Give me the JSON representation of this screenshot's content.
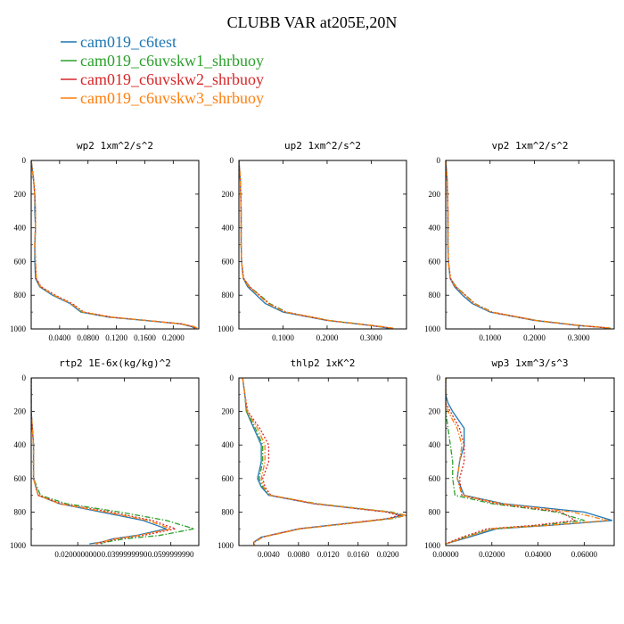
{
  "figure": {
    "title": "CLUBB VAR at205E,20N",
    "legend": [
      {
        "name": "cam019_c6test",
        "color": "#1f77b4",
        "dash": "solid"
      },
      {
        "name": "cam019_c6uvskw1_shrbuoy",
        "color": "#2ca02c",
        "dash": "dashdot"
      },
      {
        "name": "cam019_c6uvskw2_shrbuoy",
        "color": "#d62728",
        "dash": "dot"
      },
      {
        "name": "cam019_c6uvskw3_shrbuoy",
        "color": "#ff7f0e",
        "dash": "dashdot"
      }
    ]
  },
  "chart_data": [
    {
      "type": "line",
      "title": "wp2  1xm^2/s^2",
      "xlim": [
        0,
        0.236
      ],
      "ylim": [
        0,
        1000
      ],
      "y_inverted": true,
      "xticks": [
        0.04,
        0.08,
        0.12,
        0.16,
        0.2
      ],
      "xtick_labels": [
        "0.0400",
        "0.0800",
        "0.1200",
        "0.1600",
        "0.2000"
      ],
      "yticks": [
        0,
        200,
        400,
        600,
        800,
        1000
      ],
      "ytick_labels": [
        "0",
        "200",
        "400",
        "600",
        "800",
        "1000"
      ],
      "y": [
        0,
        100,
        150,
        200,
        300,
        400,
        500,
        600,
        700,
        750,
        800,
        850,
        900,
        930,
        950,
        970,
        985,
        995
      ],
      "series": [
        {
          "name": "cam019_c6test",
          "values": [
            0.0,
            0.003,
            0.004,
            0.005,
            0.005,
            0.006,
            0.005,
            0.005,
            0.006,
            0.012,
            0.03,
            0.055,
            0.07,
            0.11,
            0.16,
            0.21,
            0.225,
            0.23
          ]
        },
        {
          "name": "cam019_c6uvskw1_shrbuoy",
          "values": [
            0.0,
            0.003,
            0.004,
            0.005,
            0.006,
            0.006,
            0.005,
            0.006,
            0.007,
            0.013,
            0.032,
            0.057,
            0.072,
            0.112,
            0.162,
            0.212,
            0.228,
            0.233
          ]
        },
        {
          "name": "cam019_c6uvskw2_shrbuoy",
          "values": [
            0.0,
            0.003,
            0.004,
            0.005,
            0.006,
            0.006,
            0.005,
            0.006,
            0.007,
            0.014,
            0.034,
            0.058,
            0.074,
            0.114,
            0.163,
            0.212,
            0.226,
            0.231
          ]
        },
        {
          "name": "cam019_c6uvskw3_shrbuoy",
          "values": [
            0.0,
            0.003,
            0.004,
            0.005,
            0.006,
            0.006,
            0.005,
            0.006,
            0.007,
            0.013,
            0.032,
            0.056,
            0.073,
            0.113,
            0.162,
            0.211,
            0.229,
            0.234
          ]
        }
      ]
    },
    {
      "type": "line",
      "title": "up2  1xm^2/s^2",
      "xlim": [
        0,
        0.38
      ],
      "ylim": [
        0,
        1000
      ],
      "y_inverted": true,
      "xticks": [
        0.1,
        0.2,
        0.3
      ],
      "xtick_labels": [
        "0.1000",
        "0.2000",
        "0.3000"
      ],
      "yticks": [
        0,
        200,
        400,
        600,
        800,
        1000
      ],
      "ytick_labels": [
        "0",
        "200",
        "400",
        "600",
        "800",
        "1000"
      ],
      "y": [
        0,
        100,
        200,
        300,
        400,
        500,
        600,
        700,
        750,
        800,
        850,
        900,
        950,
        980,
        995
      ],
      "series": [
        {
          "name": "cam019_c6test",
          "values": [
            0.0,
            0.003,
            0.004,
            0.005,
            0.005,
            0.005,
            0.006,
            0.01,
            0.02,
            0.04,
            0.06,
            0.1,
            0.2,
            0.3,
            0.34
          ]
        },
        {
          "name": "cam019_c6uvskw1_shrbuoy",
          "values": [
            0.0,
            0.003,
            0.004,
            0.005,
            0.005,
            0.005,
            0.006,
            0.01,
            0.025,
            0.048,
            0.07,
            0.108,
            0.205,
            0.305,
            0.348
          ]
        },
        {
          "name": "cam019_c6uvskw2_shrbuoy",
          "values": [
            0.0,
            0.003,
            0.004,
            0.005,
            0.005,
            0.005,
            0.006,
            0.011,
            0.024,
            0.046,
            0.068,
            0.106,
            0.203,
            0.302,
            0.345
          ]
        },
        {
          "name": "cam019_c6uvskw3_shrbuoy",
          "values": [
            0.0,
            0.003,
            0.004,
            0.005,
            0.005,
            0.005,
            0.006,
            0.01,
            0.023,
            0.045,
            0.066,
            0.105,
            0.204,
            0.303,
            0.35
          ]
        }
      ]
    },
    {
      "type": "line",
      "title": "vp2  1xm^2/s^2",
      "xlim": [
        0,
        0.38
      ],
      "ylim": [
        0,
        1000
      ],
      "y_inverted": true,
      "xticks": [
        0.1,
        0.2,
        0.3
      ],
      "xtick_labels": [
        "0.1000",
        "0.2000",
        "0.3000"
      ],
      "yticks": [
        0,
        200,
        400,
        600,
        800,
        1000
      ],
      "ytick_labels": [
        "0",
        "200",
        "400",
        "600",
        "800",
        "1000"
      ],
      "y": [
        0,
        100,
        200,
        300,
        400,
        500,
        600,
        700,
        750,
        800,
        850,
        900,
        950,
        980,
        995
      ],
      "series": [
        {
          "name": "cam019_c6test",
          "values": [
            0.0,
            0.003,
            0.004,
            0.005,
            0.005,
            0.005,
            0.006,
            0.01,
            0.02,
            0.038,
            0.06,
            0.1,
            0.2,
            0.3,
            0.37
          ]
        },
        {
          "name": "cam019_c6uvskw1_shrbuoy",
          "values": [
            0.0,
            0.003,
            0.004,
            0.005,
            0.005,
            0.005,
            0.006,
            0.01,
            0.024,
            0.045,
            0.066,
            0.105,
            0.205,
            0.305,
            0.372
          ]
        },
        {
          "name": "cam019_c6uvskw2_shrbuoy",
          "values": [
            0.0,
            0.003,
            0.004,
            0.005,
            0.005,
            0.005,
            0.006,
            0.011,
            0.023,
            0.044,
            0.065,
            0.104,
            0.204,
            0.303,
            0.371
          ]
        },
        {
          "name": "cam019_c6uvskw3_shrbuoy",
          "values": [
            0.0,
            0.003,
            0.004,
            0.005,
            0.005,
            0.005,
            0.006,
            0.01,
            0.022,
            0.043,
            0.064,
            0.103,
            0.203,
            0.304,
            0.373
          ]
        }
      ]
    },
    {
      "type": "line",
      "title": "rtp2  1E-6x(kg/kg)^2",
      "xlim": [
        0,
        0.072
      ],
      "ylim": [
        0,
        1000
      ],
      "y_inverted": true,
      "xticks": [
        0.02,
        0.04,
        0.06
      ],
      "xtick_labels": [
        "0.0200000000",
        "0.0399999990",
        "0.0599999990"
      ],
      "yticks": [
        0,
        200,
        400,
        600,
        800,
        1000
      ],
      "ytick_labels": [
        "0",
        "200",
        "400",
        "600",
        "800",
        "1000"
      ],
      "y": [
        0,
        200,
        400,
        600,
        700,
        750,
        800,
        850,
        900,
        940,
        960,
        980,
        990
      ],
      "series": [
        {
          "name": "cam019_c6test",
          "values": [
            0.0,
            0.0,
            0.001,
            0.001,
            0.003,
            0.012,
            0.03,
            0.048,
            0.058,
            0.045,
            0.035,
            0.03,
            0.025
          ]
        },
        {
          "name": "cam019_c6uvskw1_shrbuoy",
          "values": [
            0.0,
            0.0,
            0.001,
            0.001,
            0.004,
            0.015,
            0.038,
            0.058,
            0.07,
            0.055,
            0.04,
            0.032,
            0.03
          ]
        },
        {
          "name": "cam019_c6uvskw2_shrbuoy",
          "values": [
            0.0,
            0.0,
            0.001,
            0.001,
            0.003,
            0.013,
            0.034,
            0.052,
            0.062,
            0.048,
            0.037,
            0.031,
            0.028
          ]
        },
        {
          "name": "cam019_c6uvskw3_shrbuoy",
          "values": [
            0.0,
            0.0,
            0.001,
            0.001,
            0.003,
            0.012,
            0.032,
            0.05,
            0.06,
            0.046,
            0.036,
            0.03,
            0.027
          ]
        }
      ]
    },
    {
      "type": "line",
      "title": "thlp2  1xK^2",
      "xlim": [
        0,
        0.0225
      ],
      "ylim": [
        0,
        1000
      ],
      "y_inverted": true,
      "xticks": [
        0.004,
        0.008,
        0.012,
        0.016,
        0.02
      ],
      "xtick_labels": [
        "0.0040",
        "0.0080",
        "0.0120",
        "0.0160",
        "0.0200"
      ],
      "yticks": [
        0,
        200,
        400,
        600,
        800,
        1000
      ],
      "ytick_labels": [
        "0",
        "200",
        "400",
        "600",
        "800",
        "1000"
      ],
      "y": [
        0,
        100,
        200,
        300,
        400,
        500,
        600,
        650,
        700,
        750,
        800,
        820,
        840,
        870,
        900,
        950,
        980,
        995
      ],
      "series": [
        {
          "name": "cam019_c6test",
          "values": [
            0.0005,
            0.0008,
            0.001,
            0.002,
            0.003,
            0.003,
            0.0025,
            0.003,
            0.004,
            0.01,
            0.02,
            0.022,
            0.02,
            0.014,
            0.008,
            0.003,
            0.002,
            0.002
          ]
        },
        {
          "name": "cam019_c6uvskw1_shrbuoy",
          "values": [
            0.0005,
            0.0008,
            0.001,
            0.0022,
            0.0032,
            0.0032,
            0.0027,
            0.0032,
            0.0042,
            0.0105,
            0.0205,
            0.0225,
            0.0205,
            0.0145,
            0.0083,
            0.0032,
            0.0021,
            0.0021
          ]
        },
        {
          "name": "cam019_c6uvskw2_shrbuoy",
          "values": [
            0.0005,
            0.0008,
            0.0012,
            0.0028,
            0.004,
            0.004,
            0.0032,
            0.0035,
            0.0043,
            0.01,
            0.0198,
            0.0215,
            0.0198,
            0.0142,
            0.0081,
            0.0031,
            0.002,
            0.002
          ]
        },
        {
          "name": "cam019_c6uvskw3_shrbuoy",
          "values": [
            0.0005,
            0.0008,
            0.0011,
            0.0025,
            0.0035,
            0.0035,
            0.003,
            0.0033,
            0.0042,
            0.0103,
            0.0202,
            0.0225,
            0.0202,
            0.0143,
            0.0082,
            0.0032,
            0.0021,
            0.0021
          ]
        }
      ]
    },
    {
      "type": "line",
      "title": "wp3  1xm^3/s^3",
      "xlim": [
        0,
        0.073
      ],
      "ylim": [
        0,
        1000
      ],
      "y_inverted": true,
      "xticks": [
        0,
        0.02,
        0.04,
        0.06
      ],
      "xtick_labels": [
        "0.00000",
        "0.02000",
        "0.04000",
        "0.06000"
      ],
      "yticks": [
        0,
        200,
        400,
        600,
        800,
        1000
      ],
      "ytick_labels": [
        "0",
        "200",
        "400",
        "600",
        "800",
        "1000"
      ],
      "y": [
        0,
        100,
        150,
        200,
        300,
        400,
        500,
        600,
        700,
        750,
        800,
        850,
        880,
        900,
        950,
        990
      ],
      "series": [
        {
          "name": "cam019_c6test",
          "values": [
            0.0,
            0.0,
            0.001,
            0.003,
            0.008,
            0.008,
            0.006,
            0.005,
            0.008,
            0.025,
            0.06,
            0.072,
            0.045,
            0.022,
            0.01,
            0.0
          ]
        },
        {
          "name": "cam019_c6uvskw1_shrbuoy",
          "values": [
            0.0,
            0.0,
            0.0,
            0.0,
            0.001,
            0.002,
            0.003,
            0.003,
            0.004,
            0.02,
            0.048,
            0.06,
            0.04,
            0.02,
            0.008,
            0.0
          ]
        },
        {
          "name": "cam019_c6uvskw2_shrbuoy",
          "values": [
            0.0,
            0.0,
            0.0,
            0.002,
            0.006,
            0.008,
            0.008,
            0.006,
            0.007,
            0.022,
            0.05,
            0.056,
            0.038,
            0.018,
            0.007,
            0.0
          ]
        },
        {
          "name": "cam019_c6uvskw3_shrbuoy",
          "values": [
            0.0,
            0.0,
            0.0,
            0.001,
            0.005,
            0.007,
            0.006,
            0.005,
            0.007,
            0.024,
            0.055,
            0.07,
            0.044,
            0.02,
            0.009,
            0.0
          ]
        }
      ]
    }
  ]
}
